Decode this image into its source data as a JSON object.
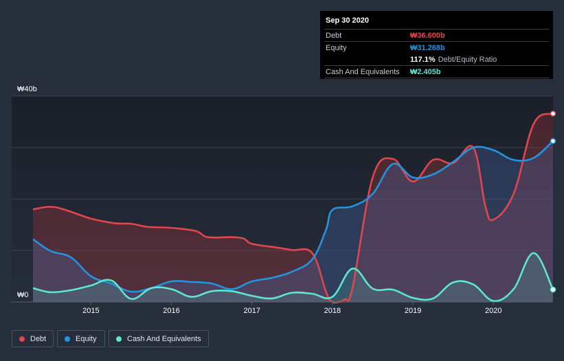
{
  "chart_data": {
    "type": "area",
    "ylabel_top": "₩40b",
    "ylabel_bottom": "₩0",
    "ylim": [
      0,
      40
    ],
    "x_ticks": [
      "2015",
      "2016",
      "2017",
      "2018",
      "2019",
      "2020"
    ],
    "x_tick_values": [
      2015,
      2016,
      2017,
      2018,
      2019,
      2020
    ],
    "xlim": [
      2014.28,
      2020.74
    ],
    "series": [
      {
        "name": "Debt",
        "color": "#e0474c",
        "points": [
          [
            2014.28,
            18.0
          ],
          [
            2014.5,
            18.5
          ],
          [
            2014.7,
            17.8
          ],
          [
            2015.0,
            16.2
          ],
          [
            2015.3,
            15.3
          ],
          [
            2015.5,
            15.2
          ],
          [
            2015.7,
            14.6
          ],
          [
            2016.0,
            14.4
          ],
          [
            2016.3,
            13.8
          ],
          [
            2016.45,
            12.6
          ],
          [
            2016.75,
            12.6
          ],
          [
            2016.9,
            12.3
          ],
          [
            2017.0,
            11.3
          ],
          [
            2017.3,
            10.6
          ],
          [
            2017.5,
            10.1
          ],
          [
            2017.75,
            9.5
          ],
          [
            2017.92,
            2.0
          ],
          [
            2018.0,
            0.0
          ],
          [
            2018.15,
            0.5
          ],
          [
            2018.25,
            2.8
          ],
          [
            2018.5,
            24.2
          ],
          [
            2018.75,
            27.8
          ],
          [
            2019.0,
            23.4
          ],
          [
            2019.25,
            27.6
          ],
          [
            2019.5,
            27.0
          ],
          [
            2019.75,
            30.0
          ],
          [
            2019.9,
            18.6
          ],
          [
            2020.0,
            16.0
          ],
          [
            2020.25,
            21.0
          ],
          [
            2020.5,
            34.6
          ],
          [
            2020.74,
            36.6
          ]
        ]
      },
      {
        "name": "Equity",
        "color": "#2394df",
        "points": [
          [
            2014.28,
            12.2
          ],
          [
            2014.5,
            9.9
          ],
          [
            2014.75,
            8.7
          ],
          [
            2015.0,
            5.0
          ],
          [
            2015.25,
            3.6
          ],
          [
            2015.5,
            2.0
          ],
          [
            2015.75,
            2.7
          ],
          [
            2016.0,
            4.0
          ],
          [
            2016.25,
            3.9
          ],
          [
            2016.5,
            3.6
          ],
          [
            2016.75,
            2.5
          ],
          [
            2017.0,
            4.0
          ],
          [
            2017.25,
            4.7
          ],
          [
            2017.5,
            5.9
          ],
          [
            2017.75,
            8.3
          ],
          [
            2017.92,
            14.0
          ],
          [
            2018.0,
            17.9
          ],
          [
            2018.25,
            18.6
          ],
          [
            2018.5,
            21.0
          ],
          [
            2018.75,
            26.8
          ],
          [
            2019.0,
            24.2
          ],
          [
            2019.25,
            24.8
          ],
          [
            2019.5,
            27.2
          ],
          [
            2019.75,
            30.0
          ],
          [
            2020.0,
            29.5
          ],
          [
            2020.25,
            27.6
          ],
          [
            2020.5,
            28.0
          ],
          [
            2020.74,
            31.268
          ]
        ]
      },
      {
        "name": "Cash And Equivalents",
        "color": "#5ce7cf",
        "points": [
          [
            2014.28,
            2.7
          ],
          [
            2014.5,
            1.9
          ],
          [
            2014.75,
            2.3
          ],
          [
            2015.0,
            3.2
          ],
          [
            2015.25,
            4.2
          ],
          [
            2015.5,
            0.6
          ],
          [
            2015.75,
            2.7
          ],
          [
            2016.0,
            2.5
          ],
          [
            2016.25,
            1.0
          ],
          [
            2016.5,
            2.1
          ],
          [
            2016.75,
            2.1
          ],
          [
            2017.0,
            1.2
          ],
          [
            2017.25,
            0.7
          ],
          [
            2017.5,
            1.8
          ],
          [
            2017.75,
            1.6
          ],
          [
            2018.0,
            1.0
          ],
          [
            2018.25,
            6.5
          ],
          [
            2018.5,
            2.6
          ],
          [
            2018.75,
            2.4
          ],
          [
            2019.0,
            0.8
          ],
          [
            2019.25,
            0.7
          ],
          [
            2019.5,
            3.8
          ],
          [
            2019.75,
            3.4
          ],
          [
            2020.0,
            0.2
          ],
          [
            2020.25,
            2.5
          ],
          [
            2020.5,
            9.5
          ],
          [
            2020.74,
            2.405
          ]
        ]
      }
    ]
  },
  "tooltip": {
    "date": "Sep 30 2020",
    "debt_label": "Debt",
    "debt_value": "₩36.600b",
    "equity_label": "Equity",
    "equity_value": "₩31.268b",
    "ratio_value": "117.1%",
    "ratio_label": "Debt/Equity Ratio",
    "cash_label": "Cash And Equivalents",
    "cash_value": "₩2.405b"
  },
  "legend": {
    "debt": "Debt",
    "equity": "Equity",
    "cash": "Cash And Equivalents"
  },
  "colors": {
    "debt": "#e0474c",
    "equity": "#2394df",
    "cash": "#5ce7cf",
    "background": "#262d3b",
    "plot_background": "#1b212c"
  }
}
